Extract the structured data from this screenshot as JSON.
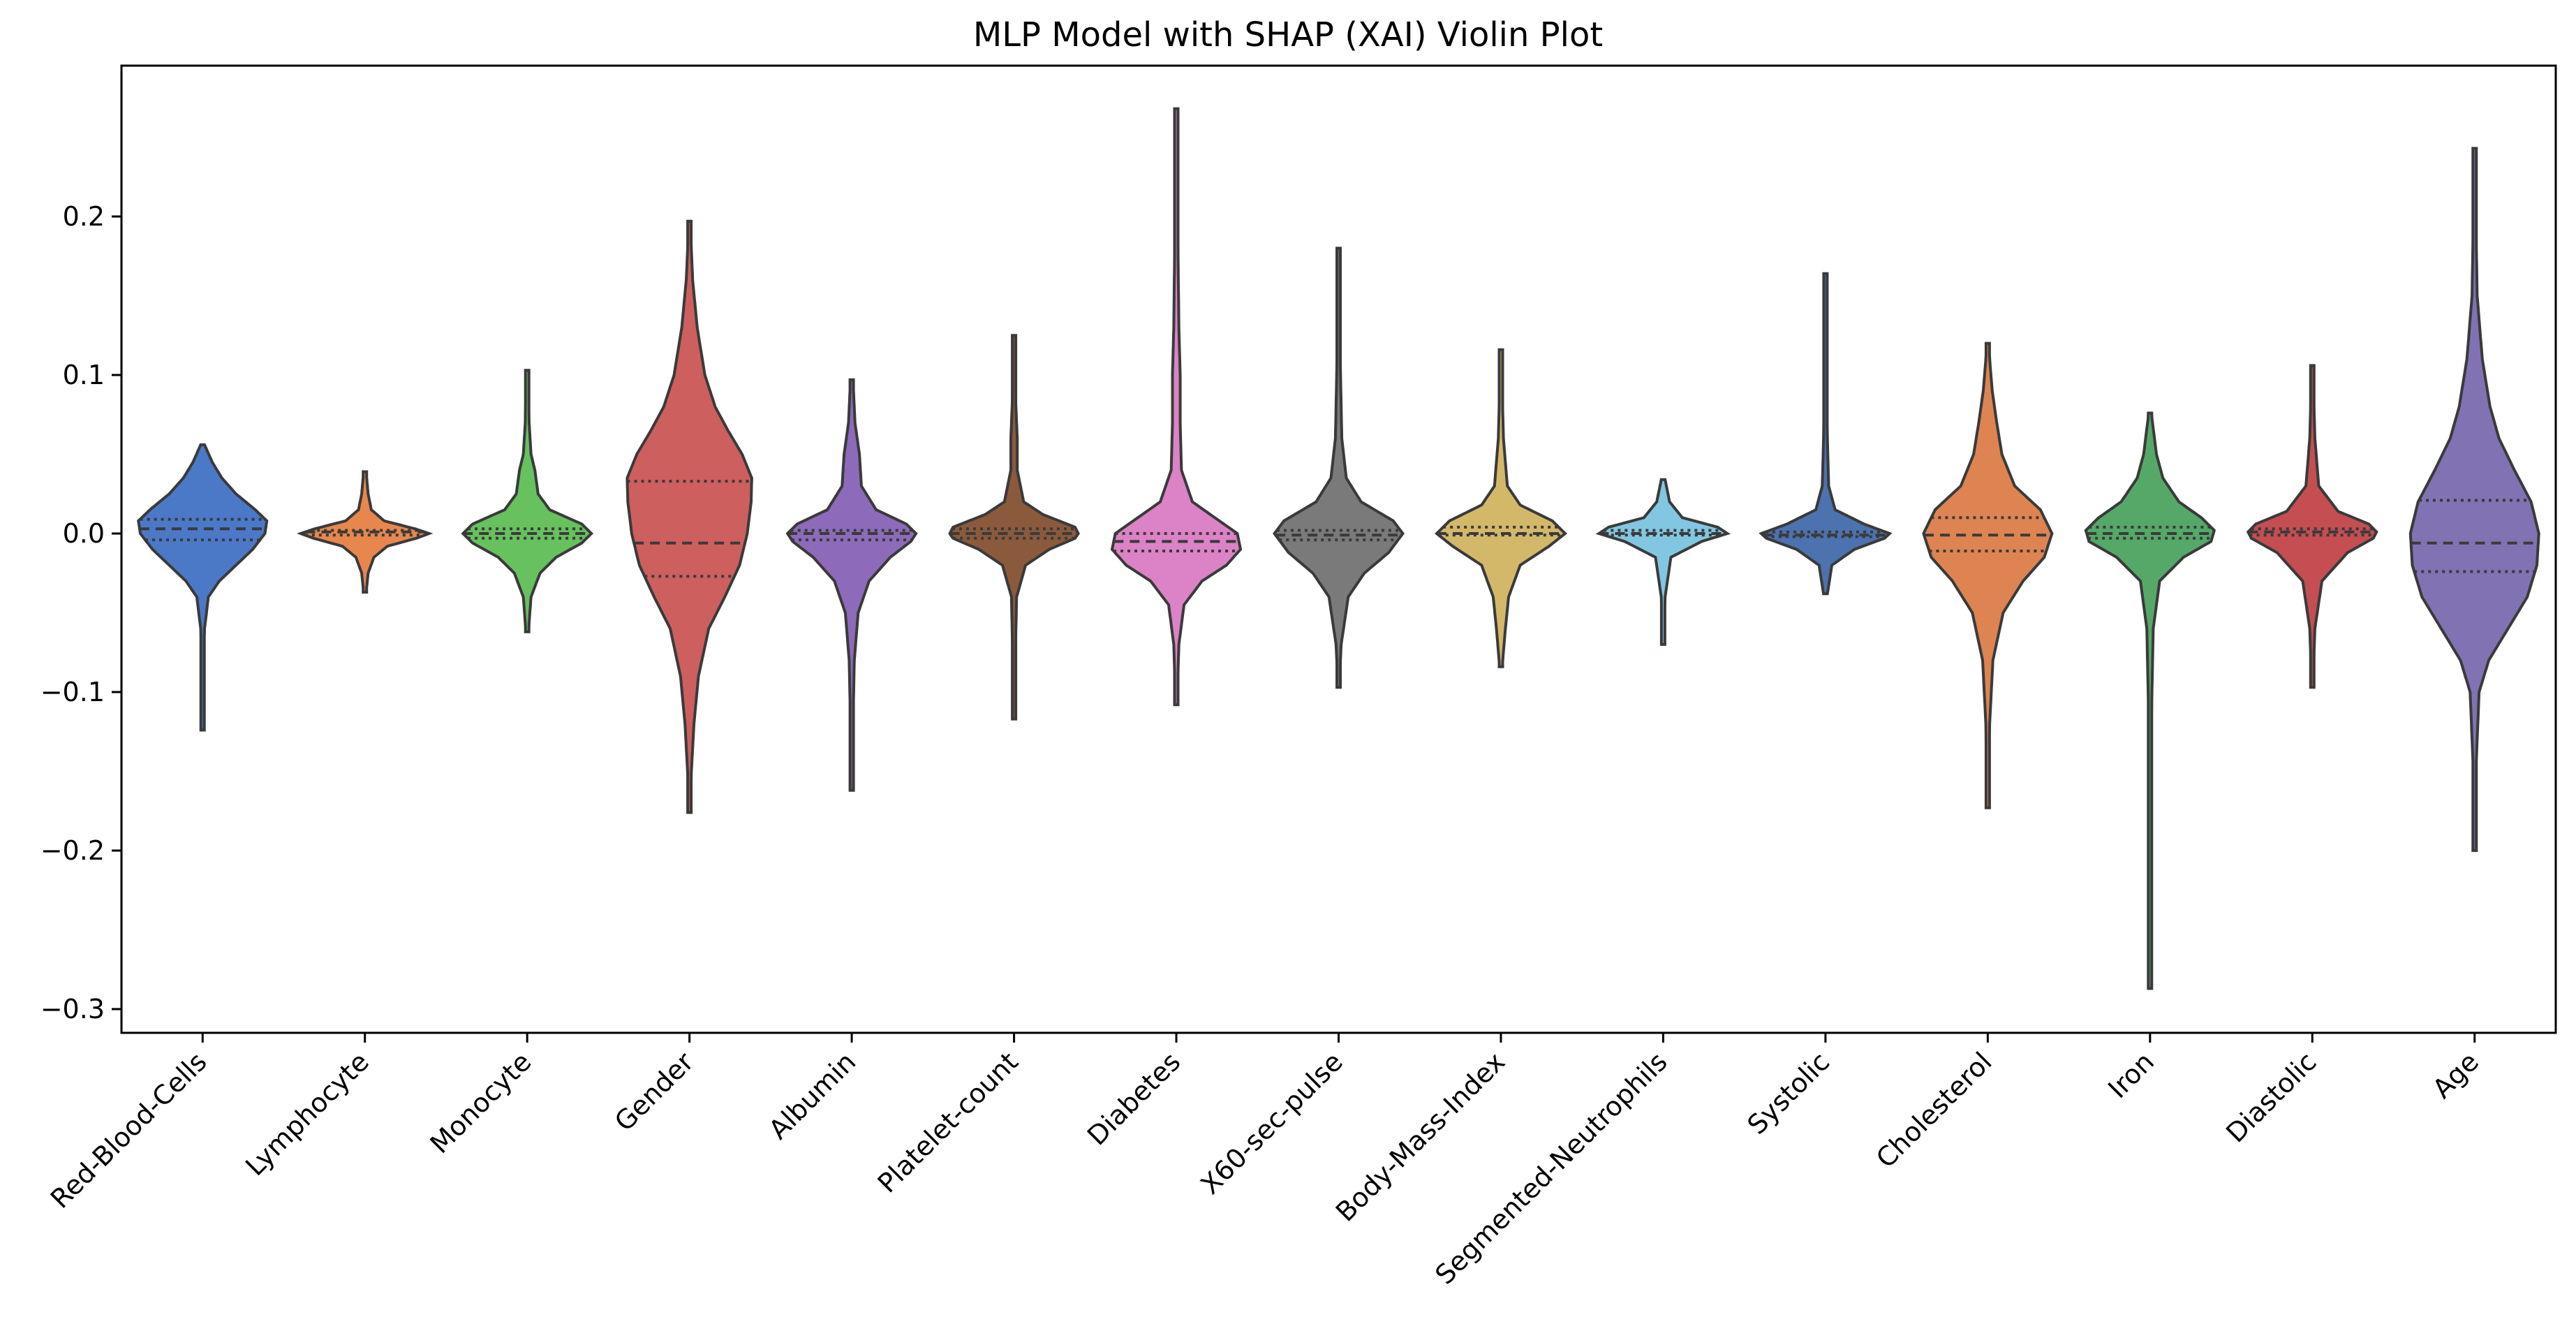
{
  "chart_data": {
    "type": "violin",
    "title": "MLP Model with SHAP (XAI) Violin Plot",
    "xlabel": "",
    "ylabel": "",
    "ylim": [
      -0.31,
      0.3
    ],
    "yticks": [
      -0.3,
      -0.2,
      -0.1,
      0.0,
      0.1,
      0.2
    ],
    "ytick_labels": [
      "−0.3",
      "−0.2",
      "−0.1",
      "0.0",
      "0.1",
      "0.2"
    ],
    "grid": false,
    "categories": [
      "Red-Blood-Cells",
      "Lymphocyte",
      "Monocyte",
      "Gender",
      "Albumin",
      "Platelet-count",
      "Diabetes",
      "X60-sec-pulse",
      "Body-Mass-Index",
      "Segmented-Neutrophils",
      "Systolic",
      "Cholesterol",
      "Iron",
      "Diastolic",
      "Age"
    ],
    "colors": [
      "#4c78c8",
      "#e8874d",
      "#66c15e",
      "#cd5f5f",
      "#8d6aba",
      "#8b5a3c",
      "#dc82c6",
      "#7a7a7a",
      "#d4b86a",
      "#82c6e2",
      "#4c72b0",
      "#dd8452",
      "#55a868",
      "#c44e52",
      "#8172b3"
    ],
    "series": [
      {
        "name": "Red-Blood-Cells",
        "min": -0.124,
        "max": 0.056,
        "q1": -0.004,
        "median": 0.003,
        "q3": 0.009,
        "profile": [
          [
            -0.124,
            0.004
          ],
          [
            -0.1,
            0.01
          ],
          [
            -0.08,
            0.018
          ],
          [
            -0.06,
            0.03
          ],
          [
            -0.04,
            0.09
          ],
          [
            -0.03,
            0.26
          ],
          [
            -0.02,
            0.52
          ],
          [
            -0.01,
            0.78
          ],
          [
            0.0,
            0.97
          ],
          [
            0.008,
            1.0
          ],
          [
            0.015,
            0.82
          ],
          [
            0.025,
            0.52
          ],
          [
            0.035,
            0.3
          ],
          [
            0.045,
            0.15
          ],
          [
            0.056,
            0.03
          ]
        ]
      },
      {
        "name": "Lymphocyte",
        "min": -0.037,
        "max": 0.039,
        "q1": -0.001,
        "median": 0.001,
        "q3": 0.002,
        "profile": [
          [
            -0.037,
            0.02
          ],
          [
            -0.025,
            0.05
          ],
          [
            -0.015,
            0.14
          ],
          [
            -0.008,
            0.35
          ],
          [
            -0.003,
            0.8
          ],
          [
            0.0,
            1.0
          ],
          [
            0.003,
            0.78
          ],
          [
            0.008,
            0.3
          ],
          [
            0.015,
            0.1
          ],
          [
            0.025,
            0.05
          ],
          [
            0.039,
            0.02
          ]
        ]
      },
      {
        "name": "Monocyte",
        "min": -0.062,
        "max": 0.103,
        "q1": -0.003,
        "median": 0.0,
        "q3": 0.003,
        "profile": [
          [
            -0.062,
            0.02
          ],
          [
            -0.04,
            0.06
          ],
          [
            -0.025,
            0.2
          ],
          [
            -0.015,
            0.45
          ],
          [
            -0.006,
            0.85
          ],
          [
            0.0,
            1.0
          ],
          [
            0.006,
            0.85
          ],
          [
            0.015,
            0.35
          ],
          [
            0.025,
            0.17
          ],
          [
            0.04,
            0.12
          ],
          [
            0.05,
            0.06
          ],
          [
            0.07,
            0.03
          ],
          [
            0.103,
            0.02
          ]
        ]
      },
      {
        "name": "Gender",
        "min": -0.176,
        "max": 0.197,
        "q1": -0.027,
        "median": -0.006,
        "q3": 0.033,
        "profile": [
          [
            -0.176,
            0.01
          ],
          [
            -0.15,
            0.03
          ],
          [
            -0.12,
            0.07
          ],
          [
            -0.09,
            0.14
          ],
          [
            -0.06,
            0.3
          ],
          [
            -0.04,
            0.55
          ],
          [
            -0.02,
            0.78
          ],
          [
            0.0,
            0.9
          ],
          [
            0.02,
            0.96
          ],
          [
            0.035,
            0.97
          ],
          [
            0.05,
            0.82
          ],
          [
            0.065,
            0.6
          ],
          [
            0.08,
            0.4
          ],
          [
            0.1,
            0.24
          ],
          [
            0.13,
            0.12
          ],
          [
            0.16,
            0.05
          ],
          [
            0.197,
            0.01
          ]
        ]
      },
      {
        "name": "Albumin",
        "min": -0.162,
        "max": 0.097,
        "q1": -0.004,
        "median": 0.0,
        "q3": 0.002,
        "profile": [
          [
            -0.162,
            0.01
          ],
          [
            -0.12,
            0.02
          ],
          [
            -0.08,
            0.04
          ],
          [
            -0.05,
            0.1
          ],
          [
            -0.03,
            0.27
          ],
          [
            -0.015,
            0.6
          ],
          [
            -0.005,
            0.92
          ],
          [
            0.0,
            1.0
          ],
          [
            0.006,
            0.85
          ],
          [
            0.015,
            0.38
          ],
          [
            0.03,
            0.15
          ],
          [
            0.05,
            0.12
          ],
          [
            0.07,
            0.05
          ],
          [
            0.097,
            0.02
          ]
        ]
      },
      {
        "name": "Platelet-count",
        "min": -0.117,
        "max": 0.125,
        "q1": -0.003,
        "median": 0.0,
        "q3": 0.003,
        "profile": [
          [
            -0.117,
            0.01
          ],
          [
            -0.08,
            0.02
          ],
          [
            -0.04,
            0.04
          ],
          [
            -0.02,
            0.18
          ],
          [
            -0.01,
            0.55
          ],
          [
            -0.003,
            0.95
          ],
          [
            0.0,
            1.0
          ],
          [
            0.004,
            0.95
          ],
          [
            0.012,
            0.45
          ],
          [
            0.02,
            0.15
          ],
          [
            0.04,
            0.05
          ],
          [
            0.06,
            0.05
          ],
          [
            0.09,
            0.02
          ],
          [
            0.125,
            0.01
          ]
        ]
      },
      {
        "name": "Diabetes",
        "min": -0.108,
        "max": 0.268,
        "q1": -0.011,
        "median": -0.005,
        "q3": 0.0,
        "profile": [
          [
            -0.108,
            0.01
          ],
          [
            -0.07,
            0.04
          ],
          [
            -0.045,
            0.12
          ],
          [
            -0.03,
            0.4
          ],
          [
            -0.02,
            0.78
          ],
          [
            -0.01,
            1.0
          ],
          [
            0.0,
            0.95
          ],
          [
            0.01,
            0.6
          ],
          [
            0.02,
            0.25
          ],
          [
            0.04,
            0.08
          ],
          [
            0.07,
            0.06
          ],
          [
            0.1,
            0.06
          ],
          [
            0.13,
            0.04
          ],
          [
            0.2,
            0.02
          ],
          [
            0.268,
            0.01
          ]
        ]
      },
      {
        "name": "X60-sec-pulse",
        "min": -0.097,
        "max": 0.18,
        "q1": -0.004,
        "median": -0.001,
        "q3": 0.002,
        "profile": [
          [
            -0.097,
            0.01
          ],
          [
            -0.07,
            0.04
          ],
          [
            -0.04,
            0.15
          ],
          [
            -0.025,
            0.4
          ],
          [
            -0.012,
            0.78
          ],
          [
            0.0,
            1.0
          ],
          [
            0.008,
            0.85
          ],
          [
            0.02,
            0.35
          ],
          [
            0.035,
            0.12
          ],
          [
            0.06,
            0.05
          ],
          [
            0.1,
            0.03
          ],
          [
            0.14,
            0.02
          ],
          [
            0.18,
            0.01
          ]
        ]
      },
      {
        "name": "Body-Mass-Index",
        "min": -0.084,
        "max": 0.116,
        "q1": -0.001,
        "median": 0.0,
        "q3": 0.004,
        "profile": [
          [
            -0.084,
            0.02
          ],
          [
            -0.06,
            0.07
          ],
          [
            -0.04,
            0.12
          ],
          [
            -0.02,
            0.3
          ],
          [
            -0.008,
            0.75
          ],
          [
            0.0,
            1.0
          ],
          [
            0.008,
            0.8
          ],
          [
            0.018,
            0.3
          ],
          [
            0.03,
            0.1
          ],
          [
            0.06,
            0.04
          ],
          [
            0.09,
            0.02
          ],
          [
            0.116,
            0.01
          ]
        ]
      },
      {
        "name": "Segmented-Neutrophils",
        "min": -0.07,
        "max": 0.034,
        "q1": -0.001,
        "median": 0.0,
        "q3": 0.002,
        "profile": [
          [
            -0.07,
            0.01
          ],
          [
            -0.04,
            0.03
          ],
          [
            -0.015,
            0.12
          ],
          [
            -0.005,
            0.6
          ],
          [
            0.0,
            1.0
          ],
          [
            0.004,
            0.85
          ],
          [
            0.01,
            0.3
          ],
          [
            0.02,
            0.1
          ],
          [
            0.034,
            0.03
          ]
        ]
      },
      {
        "name": "Systolic",
        "min": -0.038,
        "max": 0.164,
        "q1": -0.002,
        "median": -0.001,
        "q3": 0.001,
        "profile": [
          [
            -0.038,
            0.03
          ],
          [
            -0.02,
            0.1
          ],
          [
            -0.01,
            0.45
          ],
          [
            -0.003,
            0.92
          ],
          [
            0.0,
            1.0
          ],
          [
            0.006,
            0.6
          ],
          [
            0.015,
            0.15
          ],
          [
            0.03,
            0.05
          ],
          [
            0.06,
            0.03
          ],
          [
            0.1,
            0.02
          ],
          [
            0.164,
            0.01
          ]
        ]
      },
      {
        "name": "Cholesterol",
        "min": -0.173,
        "max": 0.12,
        "q1": -0.011,
        "median": -0.001,
        "q3": 0.01,
        "profile": [
          [
            -0.173,
            0.01
          ],
          [
            -0.12,
            0.03
          ],
          [
            -0.08,
            0.08
          ],
          [
            -0.05,
            0.24
          ],
          [
            -0.03,
            0.55
          ],
          [
            -0.015,
            0.88
          ],
          [
            0.0,
            1.0
          ],
          [
            0.015,
            0.82
          ],
          [
            0.03,
            0.42
          ],
          [
            0.05,
            0.22
          ],
          [
            0.07,
            0.14
          ],
          [
            0.09,
            0.07
          ],
          [
            0.12,
            0.01
          ]
        ]
      },
      {
        "name": "Iron",
        "min": -0.287,
        "max": 0.076,
        "q1": -0.003,
        "median": 0.0,
        "q3": 0.004,
        "profile": [
          [
            -0.287,
            0.01
          ],
          [
            -0.2,
            0.01
          ],
          [
            -0.12,
            0.02
          ],
          [
            -0.06,
            0.05
          ],
          [
            -0.03,
            0.15
          ],
          [
            -0.015,
            0.52
          ],
          [
            -0.005,
            0.95
          ],
          [
            0.002,
            1.0
          ],
          [
            0.01,
            0.8
          ],
          [
            0.02,
            0.45
          ],
          [
            0.035,
            0.2
          ],
          [
            0.05,
            0.1
          ],
          [
            0.076,
            0.02
          ]
        ]
      },
      {
        "name": "Diastolic",
        "min": -0.097,
        "max": 0.106,
        "q1": -0.001,
        "median": 0.001,
        "q3": 0.003,
        "profile": [
          [
            -0.097,
            0.01
          ],
          [
            -0.06,
            0.04
          ],
          [
            -0.03,
            0.15
          ],
          [
            -0.012,
            0.55
          ],
          [
            -0.003,
            0.95
          ],
          [
            0.001,
            1.0
          ],
          [
            0.006,
            0.88
          ],
          [
            0.014,
            0.4
          ],
          [
            0.03,
            0.1
          ],
          [
            0.06,
            0.04
          ],
          [
            0.106,
            0.01
          ]
        ]
      },
      {
        "name": "Age",
        "min": -0.2,
        "max": 0.243,
        "q1": -0.024,
        "median": -0.006,
        "q3": 0.021,
        "profile": [
          [
            -0.2,
            0.01
          ],
          [
            -0.15,
            0.02
          ],
          [
            -0.1,
            0.07
          ],
          [
            -0.08,
            0.22
          ],
          [
            -0.06,
            0.52
          ],
          [
            -0.04,
            0.82
          ],
          [
            -0.02,
            0.97
          ],
          [
            0.0,
            1.0
          ],
          [
            0.02,
            0.88
          ],
          [
            0.04,
            0.62
          ],
          [
            0.06,
            0.38
          ],
          [
            0.08,
            0.24
          ],
          [
            0.11,
            0.12
          ],
          [
            0.15,
            0.04
          ],
          [
            0.2,
            0.02
          ],
          [
            0.243,
            0.01
          ]
        ]
      }
    ]
  }
}
